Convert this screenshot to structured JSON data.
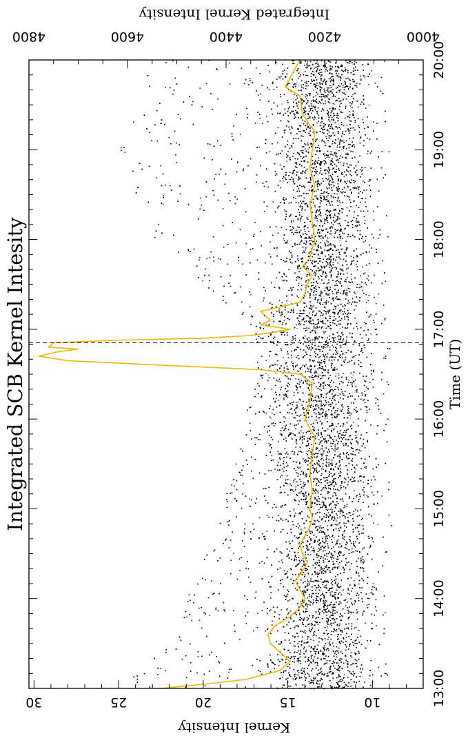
{
  "chart_data": {
    "type": "scatter",
    "title": "Integrated SCB Kernel Intesity",
    "xlabel": "Time (UT)",
    "ylabel": "Kernel Intensity",
    "y2label": "Integrated Kernel Intensity",
    "orientation": "rotated-90-clockwise",
    "xlim": [
      13.0,
      20.0
    ],
    "ylim": [
      7.0,
      30.3
    ],
    "y2lim": [
      4000,
      4800
    ],
    "x_ticks": [
      "13:00",
      "14:00",
      "15:00",
      "16:00",
      "17:00",
      "18:00",
      "19:00",
      "20:00"
    ],
    "y_ticks": [
      "10",
      "15",
      "20",
      "25",
      "30"
    ],
    "y2_ticks": [
      "4000",
      "4200",
      "4400",
      "4600",
      "4800"
    ],
    "flare_marker_time": 16.85,
    "series": [
      {
        "name": "",
        "type": "scatter",
        "color": "#000000",
        "description_values": "dense band of kernel intensities between ~10 and ~16, with an upper envelope reaching ~22-27 in the early and late hours"
      },
      {
        "name": "",
        "type": "line",
        "color": "#f0b400",
        "axis": "y2",
        "x": [
          13.0,
          13.05,
          13.1,
          13.2,
          13.3,
          13.4,
          13.5,
          13.6,
          13.7,
          13.8,
          13.9,
          14.0,
          14.1,
          14.2,
          14.3,
          14.4,
          14.5,
          14.6,
          14.7,
          14.8,
          14.9,
          15.0,
          15.2,
          15.4,
          15.6,
          15.8,
          16.0,
          16.2,
          16.4,
          16.5,
          16.55,
          16.6,
          16.65,
          16.7,
          16.75,
          16.78,
          16.8,
          16.85,
          16.88,
          16.9,
          16.93,
          16.97,
          17.0,
          17.05,
          17.1,
          17.15,
          17.2,
          17.3,
          17.4,
          17.5,
          17.6,
          17.7,
          17.8,
          18.0,
          18.2,
          18.4,
          18.6,
          18.8,
          19.0,
          19.2,
          19.4,
          19.6,
          19.7,
          19.8,
          19.9,
          20.0
        ],
        "values": [
          4530,
          4440,
          4360,
          4290,
          4270,
          4290,
          4310,
          4315,
          4300,
          4270,
          4250,
          4240,
          4250,
          4260,
          4245,
          4235,
          4245,
          4250,
          4240,
          4230,
          4225,
          4230,
          4225,
          4230,
          4225,
          4220,
          4240,
          4230,
          4225,
          4250,
          4330,
          4530,
          4720,
          4780,
          4740,
          4700,
          4760,
          4750,
          4610,
          4450,
          4350,
          4300,
          4270,
          4330,
          4310,
          4320,
          4330,
          4250,
          4240,
          4235,
          4225,
          4245,
          4230,
          4220,
          4225,
          4230,
          4220,
          4230,
          4225,
          4220,
          4245,
          4250,
          4280,
          4270,
          4260,
          4250
        ]
      }
    ]
  }
}
